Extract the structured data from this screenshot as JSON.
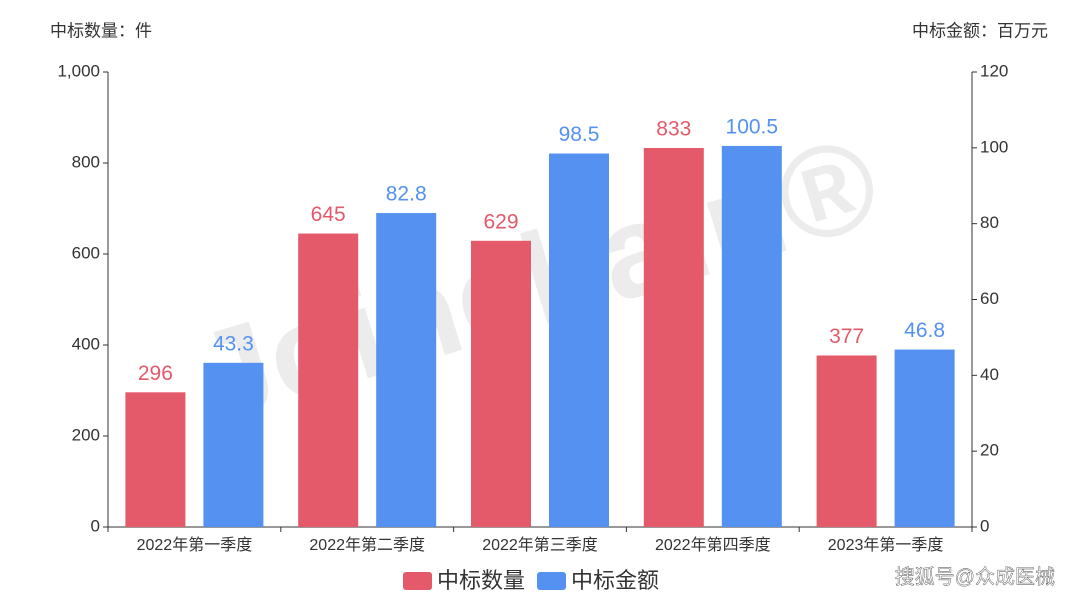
{
  "chart_data": {
    "type": "bar",
    "y_label": "中标数量：件",
    "y2_label": "中标金额：百万元",
    "categories": [
      "2022年第一季度",
      "2022年第二季度",
      "2022年第三季度",
      "2022年第四季度",
      "2023年第一季度"
    ],
    "series": [
      {
        "name": "中标数量",
        "color": "#e45a6a",
        "values": [
          296,
          645,
          629,
          833,
          377
        ]
      },
      {
        "name": "中标金额",
        "color": "#5591f0",
        "axis": "y2",
        "values": [
          43.3,
          82.8,
          98.5,
          100.5,
          46.8
        ]
      }
    ],
    "ylim": [
      0,
      1000
    ],
    "yticks": [
      0,
      200,
      400,
      600,
      800,
      {
        "value": 1000,
        "label": "1,000"
      }
    ],
    "y2lim": [
      0,
      120
    ],
    "y2ticks": [
      0,
      20,
      40,
      60,
      80,
      100,
      120
    ],
    "legend": "bottom",
    "watermark": "Joinchain®",
    "source": "搜狐号@众成医械"
  }
}
